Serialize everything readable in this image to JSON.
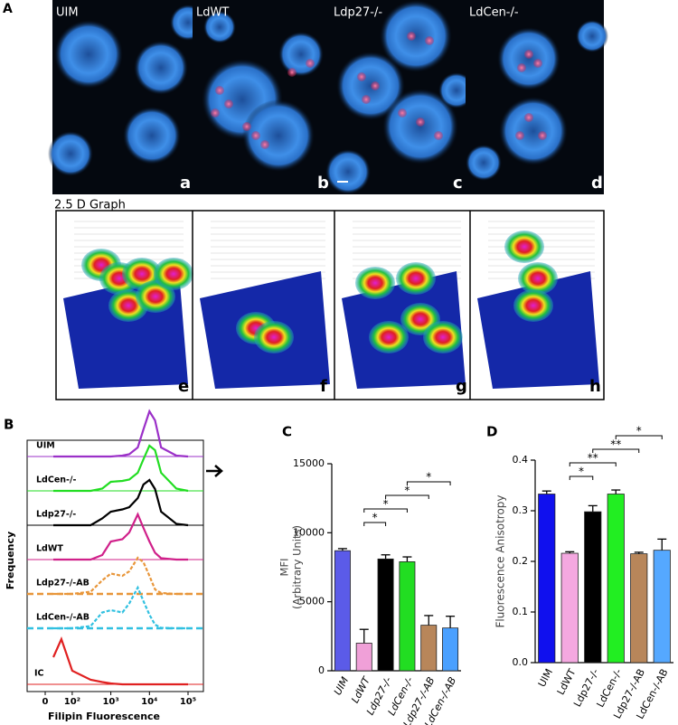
{
  "figure": {
    "panel_A": {
      "label": "A",
      "images": [
        {
          "title": "UIM",
          "letter": "a"
        },
        {
          "title": "LdWT",
          "letter": "b"
        },
        {
          "title": "Ldp27-/-",
          "letter": "c"
        },
        {
          "title": "LdCen-/-",
          "letter": "d"
        }
      ],
      "graph_title": "2.5 D Graph",
      "graph_letters": [
        "e",
        "f",
        "g",
        "h"
      ]
    }
  },
  "chart_data": [
    {
      "type": "line",
      "panel": "B",
      "ylabel": "Frequency",
      "xlabel": "Filipin Fluorescence",
      "xscale": "biexponential",
      "xlim": [
        0,
        200000
      ],
      "ylim": [
        0,
        100
      ],
      "xticks": [
        0,
        {
          "value": 100,
          "label": "10²"
        },
        {
          "value": 1000,
          "label": "10³"
        },
        {
          "value": 10000,
          "label": "10⁴"
        },
        {
          "value": 100000,
          "label": "10⁵"
        }
      ],
      "x": [
        30,
        60,
        100,
        300,
        600,
        1000,
        2000,
        3000,
        5000,
        7000,
        10000,
        14000,
        20000,
        50000,
        100000
      ],
      "series": [
        {
          "name": "UIM",
          "color": "#9b30c8",
          "dashed": false,
          "values": [
            0,
            0,
            0,
            0,
            0,
            0,
            2,
            5,
            20,
            60,
            100,
            80,
            20,
            2,
            0
          ]
        },
        {
          "name": "LdCen-/-",
          "color": "#22dd22",
          "dashed": false,
          "values": [
            0,
            0,
            0,
            0,
            5,
            20,
            22,
            25,
            40,
            70,
            100,
            90,
            40,
            5,
            0
          ]
        },
        {
          "name": "Ldp27-/-",
          "color": "#000000",
          "dashed": false,
          "values": [
            0,
            0,
            0,
            0,
            15,
            30,
            35,
            40,
            60,
            90,
            100,
            80,
            30,
            3,
            0
          ]
        },
        {
          "name": "LdWT",
          "color": "#d0208a",
          "dashed": false,
          "values": [
            0,
            0,
            0,
            0,
            10,
            40,
            45,
            60,
            100,
            70,
            40,
            15,
            3,
            0,
            0
          ]
        },
        {
          "name": "Ldp27-/-AB",
          "color": "#e8963a",
          "dashed": true,
          "values": [
            0,
            0,
            0,
            5,
            30,
            45,
            40,
            50,
            80,
            70,
            40,
            10,
            2,
            0,
            0
          ]
        },
        {
          "name": "LdCen-/-AB",
          "color": "#30c0e0",
          "dashed": true,
          "values": [
            0,
            0,
            0,
            5,
            35,
            40,
            35,
            55,
            90,
            60,
            30,
            8,
            1,
            0,
            0
          ]
        },
        {
          "name": "IC",
          "color": "#e02020",
          "dashed": false,
          "values": [
            60,
            100,
            30,
            10,
            5,
            2,
            0,
            0,
            0,
            0,
            0,
            0,
            0,
            0,
            0
          ]
        }
      ]
    },
    {
      "type": "bar",
      "panel": "C",
      "ylabel": [
        "MFI",
        "(Arbitrary Units)"
      ],
      "categories": [
        "UIM",
        "LdWT",
        "Ldp27-/-",
        "LdCen-/-",
        "Ldp27-/-AB",
        "LdCen-/-AB"
      ],
      "values": [
        8700,
        2000,
        8100,
        7900,
        3300,
        3100
      ],
      "errors": [
        150,
        1000,
        300,
        350,
        700,
        850
      ],
      "colors": [
        "#5b5be8",
        "#f0a0d8",
        "#000000",
        "#22dd22",
        "#b8865a",
        "#4aa0ff"
      ],
      "ylim": [
        0,
        15000
      ],
      "yticks": [
        0,
        5000,
        10000,
        15000
      ],
      "comparisons": [
        {
          "pair": [
            "LdWT",
            "Ldp27-/-"
          ],
          "label": "*"
        },
        {
          "pair": [
            "LdWT",
            "LdCen-/-"
          ],
          "label": "*"
        },
        {
          "pair": [
            "Ldp27-/-",
            "Ldp27-/-AB"
          ],
          "label": "*"
        },
        {
          "pair": [
            "LdCen-/-",
            "LdCen-/-AB"
          ],
          "label": "*"
        }
      ]
    },
    {
      "type": "bar",
      "panel": "D",
      "ylabel": "Fluorescence Anisotropy",
      "categories": [
        "UIM",
        "LdWT",
        "Ldp27-/-",
        "LdCen-/-",
        "Ldp27-/-AB",
        "LdCen-/-AB"
      ],
      "values": [
        0.333,
        0.216,
        0.298,
        0.333,
        0.215,
        0.222
      ],
      "errors": [
        0.006,
        0.003,
        0.012,
        0.008,
        0.003,
        0.022
      ],
      "colors": [
        "#1010ee",
        "#f4a8e0",
        "#000000",
        "#22ee22",
        "#b8865a",
        "#55a8ff"
      ],
      "ylim": [
        0,
        0.4
      ],
      "yticks": [
        {
          "value": 0,
          "label": "0.0"
        },
        0.1,
        0.2,
        0.3,
        0.4
      ],
      "comparisons": [
        {
          "pair": [
            "LdWT",
            "Ldp27-/-"
          ],
          "label": "*"
        },
        {
          "pair": [
            "LdWT",
            "LdCen-/-"
          ],
          "label": "**"
        },
        {
          "pair": [
            "Ldp27-/-",
            "Ldp27-/-AB"
          ],
          "label": "**"
        },
        {
          "pair": [
            "LdCen-/-",
            "LdCen-/-AB"
          ],
          "label": "*"
        }
      ]
    }
  ]
}
